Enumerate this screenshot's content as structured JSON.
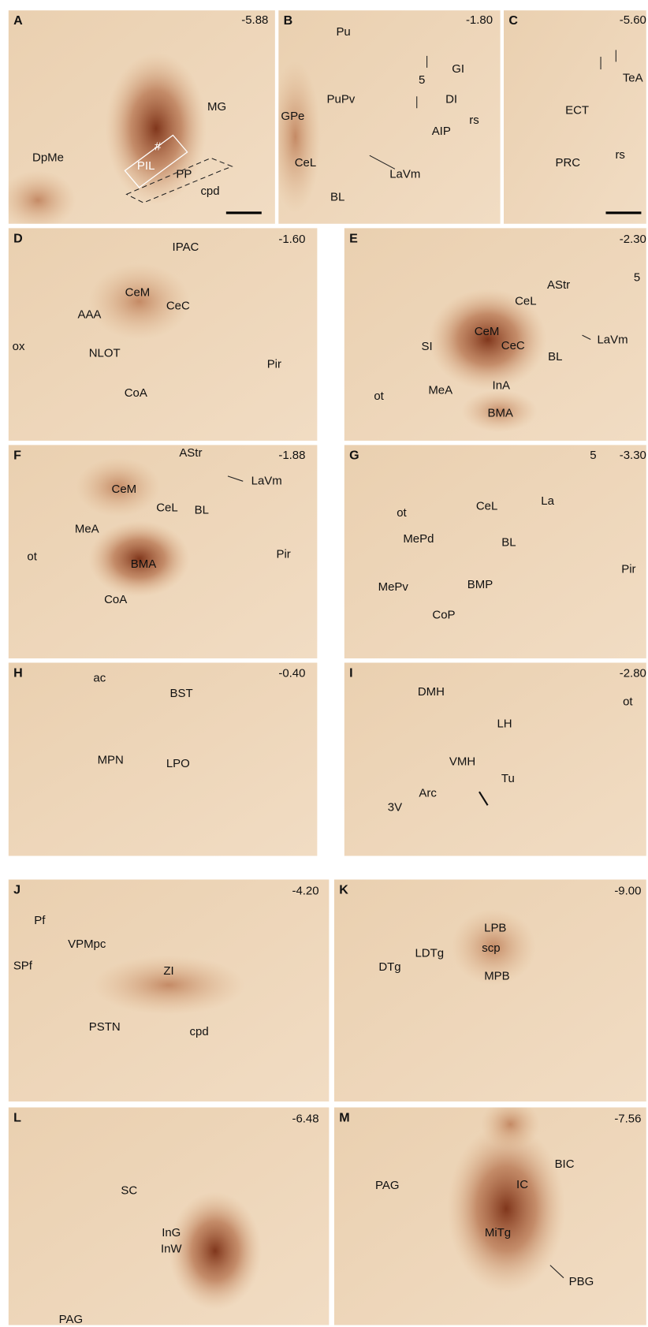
{
  "panels": [
    {
      "letter": "A",
      "coordinate": "-5.88",
      "labels": [
        "MG",
        "DpMe",
        "PIL",
        "#",
        "PP",
        "cpd"
      ]
    },
    {
      "letter": "B",
      "coordinate": "-1.80",
      "labels": [
        "Pu",
        "PuPv",
        "GPe",
        "CeL",
        "BL",
        "LaVm",
        "5",
        "GI",
        "DI",
        "AIP",
        "rs"
      ]
    },
    {
      "letter": "C",
      "coordinate": "-5.60",
      "labels": [
        "TeA",
        "ECT",
        "PRC",
        "rs"
      ]
    },
    {
      "letter": "D",
      "coordinate": "-1.60",
      "labels": [
        "IPAC",
        "CeM",
        "CeC",
        "AAA",
        "ox",
        "NLOT",
        "Pir",
        "CoA"
      ]
    },
    {
      "letter": "E",
      "coordinate": "-2.30",
      "labels": [
        "AStr",
        "5",
        "CeL",
        "CeM",
        "CeC",
        "LaVm",
        "SI",
        "BL",
        "InA",
        "MeA",
        "ot",
        "BMA"
      ]
    },
    {
      "letter": "F",
      "coordinate": "-1.88",
      "labels": [
        "AStr",
        "LaVm",
        "CeM",
        "CeL",
        "BL",
        "MeA",
        "ot",
        "Pir",
        "BMA",
        "CoA"
      ]
    },
    {
      "letter": "G",
      "coordinate": "-3.30",
      "labels": [
        "5",
        "ot",
        "CeL",
        "La",
        "MePd",
        "BL",
        "Pir",
        "MePv",
        "BMP",
        "CoP"
      ]
    },
    {
      "letter": "H",
      "coordinate": "-0.40",
      "labels": [
        "ac",
        "BST",
        "MPN",
        "LPO"
      ]
    },
    {
      "letter": "I",
      "coordinate": "-2.80",
      "labels": [
        "DMH",
        "ot",
        "LH",
        "VMH",
        "Tu",
        "Arc",
        "3V"
      ]
    },
    {
      "letter": "J",
      "coordinate": "-4.20",
      "labels": [
        "Pf",
        "VPMpc",
        "SPf",
        "ZI",
        "PSTN",
        "cpd"
      ]
    },
    {
      "letter": "K",
      "coordinate": "-9.00",
      "labels": [
        "LPB",
        "scp",
        "LDTg",
        "DTg",
        "MPB"
      ]
    },
    {
      "letter": "L",
      "coordinate": "-6.48",
      "labels": [
        "SC",
        "InG",
        "InW",
        "PAG"
      ]
    },
    {
      "letter": "M",
      "coordinate": "-7.56",
      "labels": [
        "BIC",
        "PAG",
        "IC",
        "MiTg",
        "PBG"
      ]
    }
  ]
}
